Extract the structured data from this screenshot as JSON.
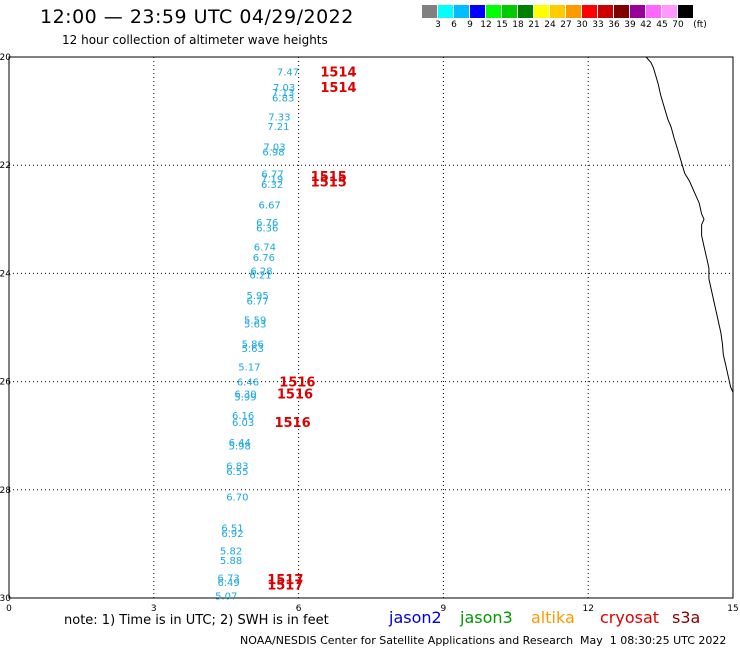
{
  "header": {
    "title": "12:00 — 23:59 UTC 04/29/2022",
    "subtitle": "12 hour collection of altimeter wave heights"
  },
  "legend": {
    "colors": [
      "#808080",
      "#00ffff",
      "#00bfff",
      "#0000ff",
      "#00ff00",
      "#00cc00",
      "#008000",
      "#ffff00",
      "#ffcc00",
      "#ff9900",
      "#ff0000",
      "#cc0000",
      "#800000",
      "#990099",
      "#ff66ff",
      "#ff99ff",
      "#000000"
    ],
    "labels": [
      "3",
      "6",
      "9",
      "12",
      "15",
      "18",
      "21",
      "24",
      "27",
      "30",
      "33",
      "36",
      "39",
      "42",
      "45",
      "70",
      "(ft)"
    ]
  },
  "map": {
    "y_ticks": [
      "-20",
      "-22",
      "-24",
      "-26",
      "-28",
      "-30"
    ],
    "x_ticks": [
      "0",
      "3",
      "6",
      "9",
      "12",
      "15"
    ],
    "colors": {
      "swh": "#1aa8e0",
      "time": "#dd0000",
      "coast": "#000000",
      "grid": "#000000"
    },
    "swh_labels": [
      {
        "text": "7.47",
        "lon": 5.55,
        "lat": -20.27
      },
      {
        "text": "7.03",
        "lon": 5.47,
        "lat": -20.55
      },
      {
        "text": "7.13",
        "lon": 5.45,
        "lat": -20.65
      },
      {
        "text": "6.83",
        "lon": 5.45,
        "lat": -20.75
      },
      {
        "text": "7.33",
        "lon": 5.37,
        "lat": -21.1
      },
      {
        "text": "7.21",
        "lon": 5.35,
        "lat": -21.28
      },
      {
        "text": "7.03",
        "lon": 5.27,
        "lat": -21.65
      },
      {
        "text": "6.98",
        "lon": 5.25,
        "lat": -21.75
      },
      {
        "text": "6.77",
        "lon": 5.23,
        "lat": -22.15
      },
      {
        "text": "7.19",
        "lon": 5.22,
        "lat": -22.25
      },
      {
        "text": "6.32",
        "lon": 5.22,
        "lat": -22.35
      },
      {
        "text": "6.67",
        "lon": 5.17,
        "lat": -22.73
      },
      {
        "text": "6.76",
        "lon": 5.12,
        "lat": -23.05
      },
      {
        "text": "6.36",
        "lon": 5.12,
        "lat": -23.15
      },
      {
        "text": "6.74",
        "lon": 5.07,
        "lat": -23.5
      },
      {
        "text": "6.76",
        "lon": 5.05,
        "lat": -23.7
      },
      {
        "text": "6.28",
        "lon": 5.0,
        "lat": -23.95
      },
      {
        "text": "6.21",
        "lon": 4.98,
        "lat": -24.02
      },
      {
        "text": "5.95",
        "lon": 4.92,
        "lat": -24.4
      },
      {
        "text": "6.77",
        "lon": 4.92,
        "lat": -24.5
      },
      {
        "text": "5.59",
        "lon": 4.87,
        "lat": -24.85
      },
      {
        "text": "5.63",
        "lon": 4.87,
        "lat": -24.93
      },
      {
        "text": "5.86",
        "lon": 4.82,
        "lat": -25.3
      },
      {
        "text": "5.63",
        "lon": 4.82,
        "lat": -25.38
      },
      {
        "text": "5.17",
        "lon": 4.75,
        "lat": -25.72
      },
      {
        "text": "6.46",
        "lon": 4.72,
        "lat": -26.0
      },
      {
        "text": "6.30",
        "lon": 4.67,
        "lat": -26.22
      },
      {
        "text": "5.99",
        "lon": 4.67,
        "lat": -26.28
      },
      {
        "text": "6.16",
        "lon": 4.62,
        "lat": -26.62
      },
      {
        "text": "6.03",
        "lon": 4.62,
        "lat": -26.75
      },
      {
        "text": "6.44",
        "lon": 4.55,
        "lat": -27.12
      },
      {
        "text": "5.98",
        "lon": 4.55,
        "lat": -27.18
      },
      {
        "text": "6.83",
        "lon": 4.5,
        "lat": -27.55
      },
      {
        "text": "6.55",
        "lon": 4.5,
        "lat": -27.65
      },
      {
        "text": "6.70",
        "lon": 4.5,
        "lat": -28.12
      },
      {
        "text": "6.51",
        "lon": 4.4,
        "lat": -28.7
      },
      {
        "text": "6.92",
        "lon": 4.4,
        "lat": -28.8
      },
      {
        "text": "5.82",
        "lon": 4.37,
        "lat": -29.12
      },
      {
        "text": "5.88",
        "lon": 4.37,
        "lat": -29.3
      },
      {
        "text": "6.73",
        "lon": 4.32,
        "lat": -29.62
      },
      {
        "text": "6.49",
        "lon": 4.32,
        "lat": -29.7
      },
      {
        "text": "5.07",
        "lon": 4.27,
        "lat": -29.95
      }
    ],
    "time_labels": [
      {
        "text": "1514",
        "lon": 6.45,
        "lat": -20.27
      },
      {
        "text": "1514",
        "lon": 6.45,
        "lat": -20.55
      },
      {
        "text": "1515",
        "lon": 6.25,
        "lat": -22.2
      },
      {
        "text": "1515",
        "lon": 6.25,
        "lat": -22.3
      },
      {
        "text": "1516",
        "lon": 5.6,
        "lat": -26.0
      },
      {
        "text": "1516",
        "lon": 5.55,
        "lat": -26.22
      },
      {
        "text": "1516",
        "lon": 5.5,
        "lat": -26.75
      },
      {
        "text": "1517",
        "lon": 5.35,
        "lat": -29.65
      },
      {
        "text": "1517",
        "lon": 5.35,
        "lat": -29.75
      }
    ],
    "coastline": [
      [
        13.2,
        -20.0
      ],
      [
        13.3,
        -20.1
      ],
      [
        13.35,
        -20.2
      ],
      [
        13.4,
        -20.35
      ],
      [
        13.45,
        -20.5
      ],
      [
        13.5,
        -20.7
      ],
      [
        13.55,
        -20.85
      ],
      [
        13.6,
        -21.0
      ],
      [
        13.65,
        -21.15
      ],
      [
        13.72,
        -21.3
      ],
      [
        13.78,
        -21.5
      ],
      [
        13.85,
        -21.7
      ],
      [
        13.9,
        -21.85
      ],
      [
        13.95,
        -22.0
      ],
      [
        14.0,
        -22.15
      ],
      [
        14.1,
        -22.3
      ],
      [
        14.2,
        -22.5
      ],
      [
        14.3,
        -22.7
      ],
      [
        14.35,
        -22.9
      ],
      [
        14.4,
        -23.0
      ],
      [
        14.35,
        -23.1
      ],
      [
        14.35,
        -23.3
      ],
      [
        14.4,
        -23.5
      ],
      [
        14.45,
        -23.7
      ],
      [
        14.5,
        -23.9
      ],
      [
        14.5,
        -24.1
      ],
      [
        14.55,
        -24.3
      ],
      [
        14.6,
        -24.5
      ],
      [
        14.65,
        -24.7
      ],
      [
        14.7,
        -24.9
      ],
      [
        14.75,
        -25.1
      ],
      [
        14.78,
        -25.3
      ],
      [
        14.8,
        -25.5
      ],
      [
        14.85,
        -25.7
      ],
      [
        14.9,
        -25.9
      ],
      [
        14.95,
        -26.1
      ],
      [
        15.0,
        -26.2
      ],
      [
        15.0,
        -26.4
      ]
    ]
  },
  "footer": {
    "note": "note: 1) Time is in UTC; 2) SWH is in feet",
    "satellites": [
      {
        "name": "jason2",
        "color": "#0000dd"
      },
      {
        "name": "jason3",
        "color": "#009900"
      },
      {
        "name": "altika",
        "color": "#ff9900"
      },
      {
        "name": "cryosat",
        "color": "#dd0000"
      },
      {
        "name": "s3a",
        "color": "#880000"
      }
    ],
    "credit": "NOAA/NESDIS Center for Satellite Applications and Research",
    "timestamp": "May  1 08:30:25 UTC 2022"
  }
}
